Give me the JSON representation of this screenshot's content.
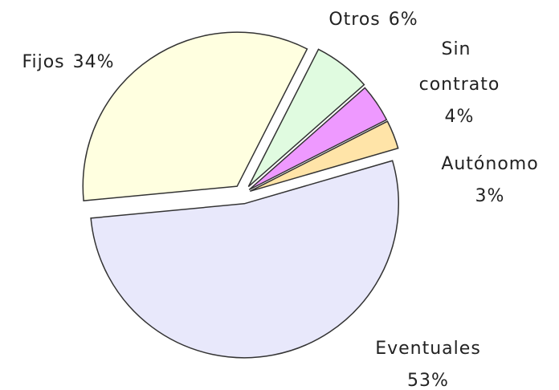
{
  "chart_data": {
    "type": "pie",
    "categories": [
      "Otros",
      "Sin contrato",
      "Autónomo",
      "Eventuales",
      "Fijos"
    ],
    "values": [
      6,
      4,
      3,
      53,
      34
    ],
    "value_labels": [
      "6%",
      "4%",
      "3%",
      "53%",
      "34%"
    ],
    "colors": [
      "#e0fbe0",
      "#ee99ff",
      "#ffe4a8",
      "#e8e8fb",
      "#ffffe0"
    ]
  }
}
